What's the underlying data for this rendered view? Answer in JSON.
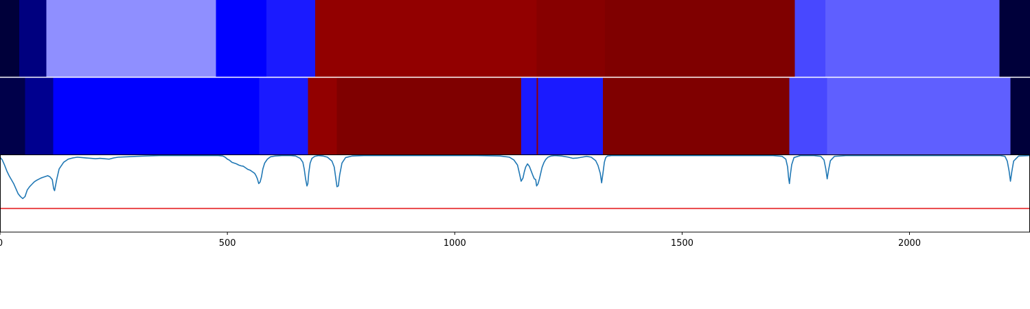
{
  "chart_data": {
    "type": "heatmap",
    "title": "",
    "xlabel": "",
    "ylabel": "",
    "xlim": [
      0,
      2265
    ],
    "grid": false,
    "legend": "none",
    "segment_tracks": [
      {
        "segments": [
          {
            "start": 0,
            "end": 42,
            "color": "#00003a"
          },
          {
            "start": 42,
            "end": 102,
            "color": "#00007f"
          },
          {
            "start": 102,
            "end": 475,
            "color": "#8f8fff"
          },
          {
            "start": 475,
            "end": 586,
            "color": "#0000ff"
          },
          {
            "start": 586,
            "end": 693,
            "color": "#1a1aff"
          },
          {
            "start": 693,
            "end": 1180,
            "color": "#920000"
          },
          {
            "start": 1180,
            "end": 1330,
            "color": "#870000"
          },
          {
            "start": 1330,
            "end": 1748,
            "color": "#7f0000"
          },
          {
            "start": 1748,
            "end": 1815,
            "color": "#4848ff"
          },
          {
            "start": 1815,
            "end": 2198,
            "color": "#5f5fff"
          },
          {
            "start": 2198,
            "end": 2265,
            "color": "#00003a"
          }
        ]
      },
      {
        "segments": [
          {
            "start": 0,
            "end": 55,
            "color": "#00004a"
          },
          {
            "start": 55,
            "end": 117,
            "color": "#00008f"
          },
          {
            "start": 117,
            "end": 570,
            "color": "#0000ff"
          },
          {
            "start": 570,
            "end": 677,
            "color": "#1a1aff"
          },
          {
            "start": 677,
            "end": 741,
            "color": "#920000"
          },
          {
            "start": 741,
            "end": 1146,
            "color": "#7f0000"
          },
          {
            "start": 1146,
            "end": 1180,
            "color": "#1a1aff"
          },
          {
            "start": 1180,
            "end": 1183,
            "color": "#920000"
          },
          {
            "start": 1183,
            "end": 1326,
            "color": "#1a1aff"
          },
          {
            "start": 1326,
            "end": 1736,
            "color": "#7f0000"
          },
          {
            "start": 1736,
            "end": 1819,
            "color": "#4848ff"
          },
          {
            "start": 1819,
            "end": 2222,
            "color": "#5f5fff"
          },
          {
            "start": 2222,
            "end": 2265,
            "color": "#00003a"
          }
        ]
      }
    ],
    "series": [
      {
        "color": "#1f77b4",
        "x": [
          0,
          5,
          10,
          15,
          20,
          25,
          30,
          35,
          40,
          45,
          50,
          55,
          60,
          65,
          70,
          75,
          80,
          85,
          90,
          95,
          100,
          105,
          110,
          115,
          118,
          120,
          125,
          130,
          140,
          150,
          160,
          170,
          180,
          190,
          200,
          210,
          220,
          230,
          240,
          250,
          260,
          280,
          300,
          320,
          350,
          380,
          400,
          430,
          460,
          480,
          490,
          495,
          500,
          505,
          510,
          515,
          520,
          525,
          530,
          535,
          540,
          545,
          550,
          555,
          560,
          563,
          566,
          569,
          572,
          575,
          578,
          582,
          588,
          595,
          605,
          620,
          640,
          650,
          660,
          666,
          669,
          672,
          675,
          677,
          679,
          682,
          686,
          692,
          700,
          710,
          720,
          730,
          735,
          738,
          741,
          744,
          747,
          752,
          760,
          775,
          800,
          830,
          880,
          950,
          1050,
          1100,
          1120,
          1130,
          1138,
          1142,
          1146,
          1150,
          1153,
          1156,
          1160,
          1164,
          1168,
          1172,
          1175,
          1178,
          1180,
          1183,
          1186,
          1189,
          1192,
          1196,
          1200,
          1205,
          1212,
          1220,
          1235,
          1250,
          1260,
          1270,
          1280,
          1290,
          1300,
          1310,
          1315,
          1320,
          1323,
          1326,
          1329,
          1332,
          1336,
          1345,
          1400,
          1500,
          1600,
          1700,
          1720,
          1728,
          1732,
          1734,
          1736,
          1738,
          1741,
          1746,
          1760,
          1790,
          1805,
          1812,
          1816,
          1819,
          1822,
          1826,
          1835,
          1860,
          1950,
          2100,
          2200,
          2210,
          2215,
          2219,
          2222,
          2225,
          2229,
          2240,
          2265
        ],
        "y": [
          0.05,
          0.12,
          0.25,
          0.4,
          0.52,
          0.62,
          0.72,
          0.85,
          0.98,
          1.05,
          1.1,
          1.05,
          0.88,
          0.8,
          0.74,
          0.68,
          0.64,
          0.61,
          0.58,
          0.56,
          0.54,
          0.52,
          0.55,
          0.62,
          0.85,
          0.9,
          0.6,
          0.35,
          0.18,
          0.1,
          0.07,
          0.05,
          0.06,
          0.07,
          0.08,
          0.09,
          0.08,
          0.09,
          0.1,
          0.07,
          0.05,
          0.04,
          0.03,
          0.02,
          0.01,
          0.01,
          0.01,
          0.01,
          0.01,
          0.01,
          0.02,
          0.05,
          0.1,
          0.13,
          0.18,
          0.2,
          0.22,
          0.25,
          0.27,
          0.28,
          0.32,
          0.36,
          0.38,
          0.42,
          0.46,
          0.52,
          0.6,
          0.72,
          0.68,
          0.55,
          0.35,
          0.2,
          0.1,
          0.04,
          0.02,
          0.01,
          0.01,
          0.02,
          0.08,
          0.18,
          0.35,
          0.6,
          0.78,
          0.72,
          0.45,
          0.2,
          0.08,
          0.03,
          0.01,
          0.02,
          0.05,
          0.15,
          0.3,
          0.55,
          0.8,
          0.78,
          0.5,
          0.2,
          0.06,
          0.02,
          0.01,
          0.01,
          0.01,
          0.01,
          0.01,
          0.02,
          0.05,
          0.12,
          0.25,
          0.45,
          0.66,
          0.58,
          0.42,
          0.3,
          0.22,
          0.28,
          0.4,
          0.52,
          0.6,
          0.62,
          0.78,
          0.73,
          0.61,
          0.46,
          0.31,
          0.19,
          0.11,
          0.05,
          0.02,
          0.01,
          0.02,
          0.05,
          0.08,
          0.07,
          0.05,
          0.03,
          0.05,
          0.14,
          0.26,
          0.46,
          0.7,
          0.45,
          0.18,
          0.06,
          0.02,
          0.01,
          0.01,
          0.01,
          0.01,
          0.01,
          0.03,
          0.1,
          0.3,
          0.56,
          0.72,
          0.5,
          0.24,
          0.06,
          0.01,
          0.01,
          0.03,
          0.12,
          0.35,
          0.6,
          0.38,
          0.14,
          0.03,
          0.01,
          0.01,
          0.01,
          0.01,
          0.03,
          0.15,
          0.4,
          0.66,
          0.42,
          0.15,
          0.02,
          0.01
        ]
      }
    ],
    "hline": {
      "y": 1.35,
      "color": "#e41a1c"
    },
    "line_ylim": [
      0,
      1.95
    ],
    "xticks": [
      0,
      500,
      1000,
      1500,
      2000
    ],
    "xtick_labels": [
      "0",
      "500",
      "1000",
      "1500",
      "2000"
    ]
  }
}
